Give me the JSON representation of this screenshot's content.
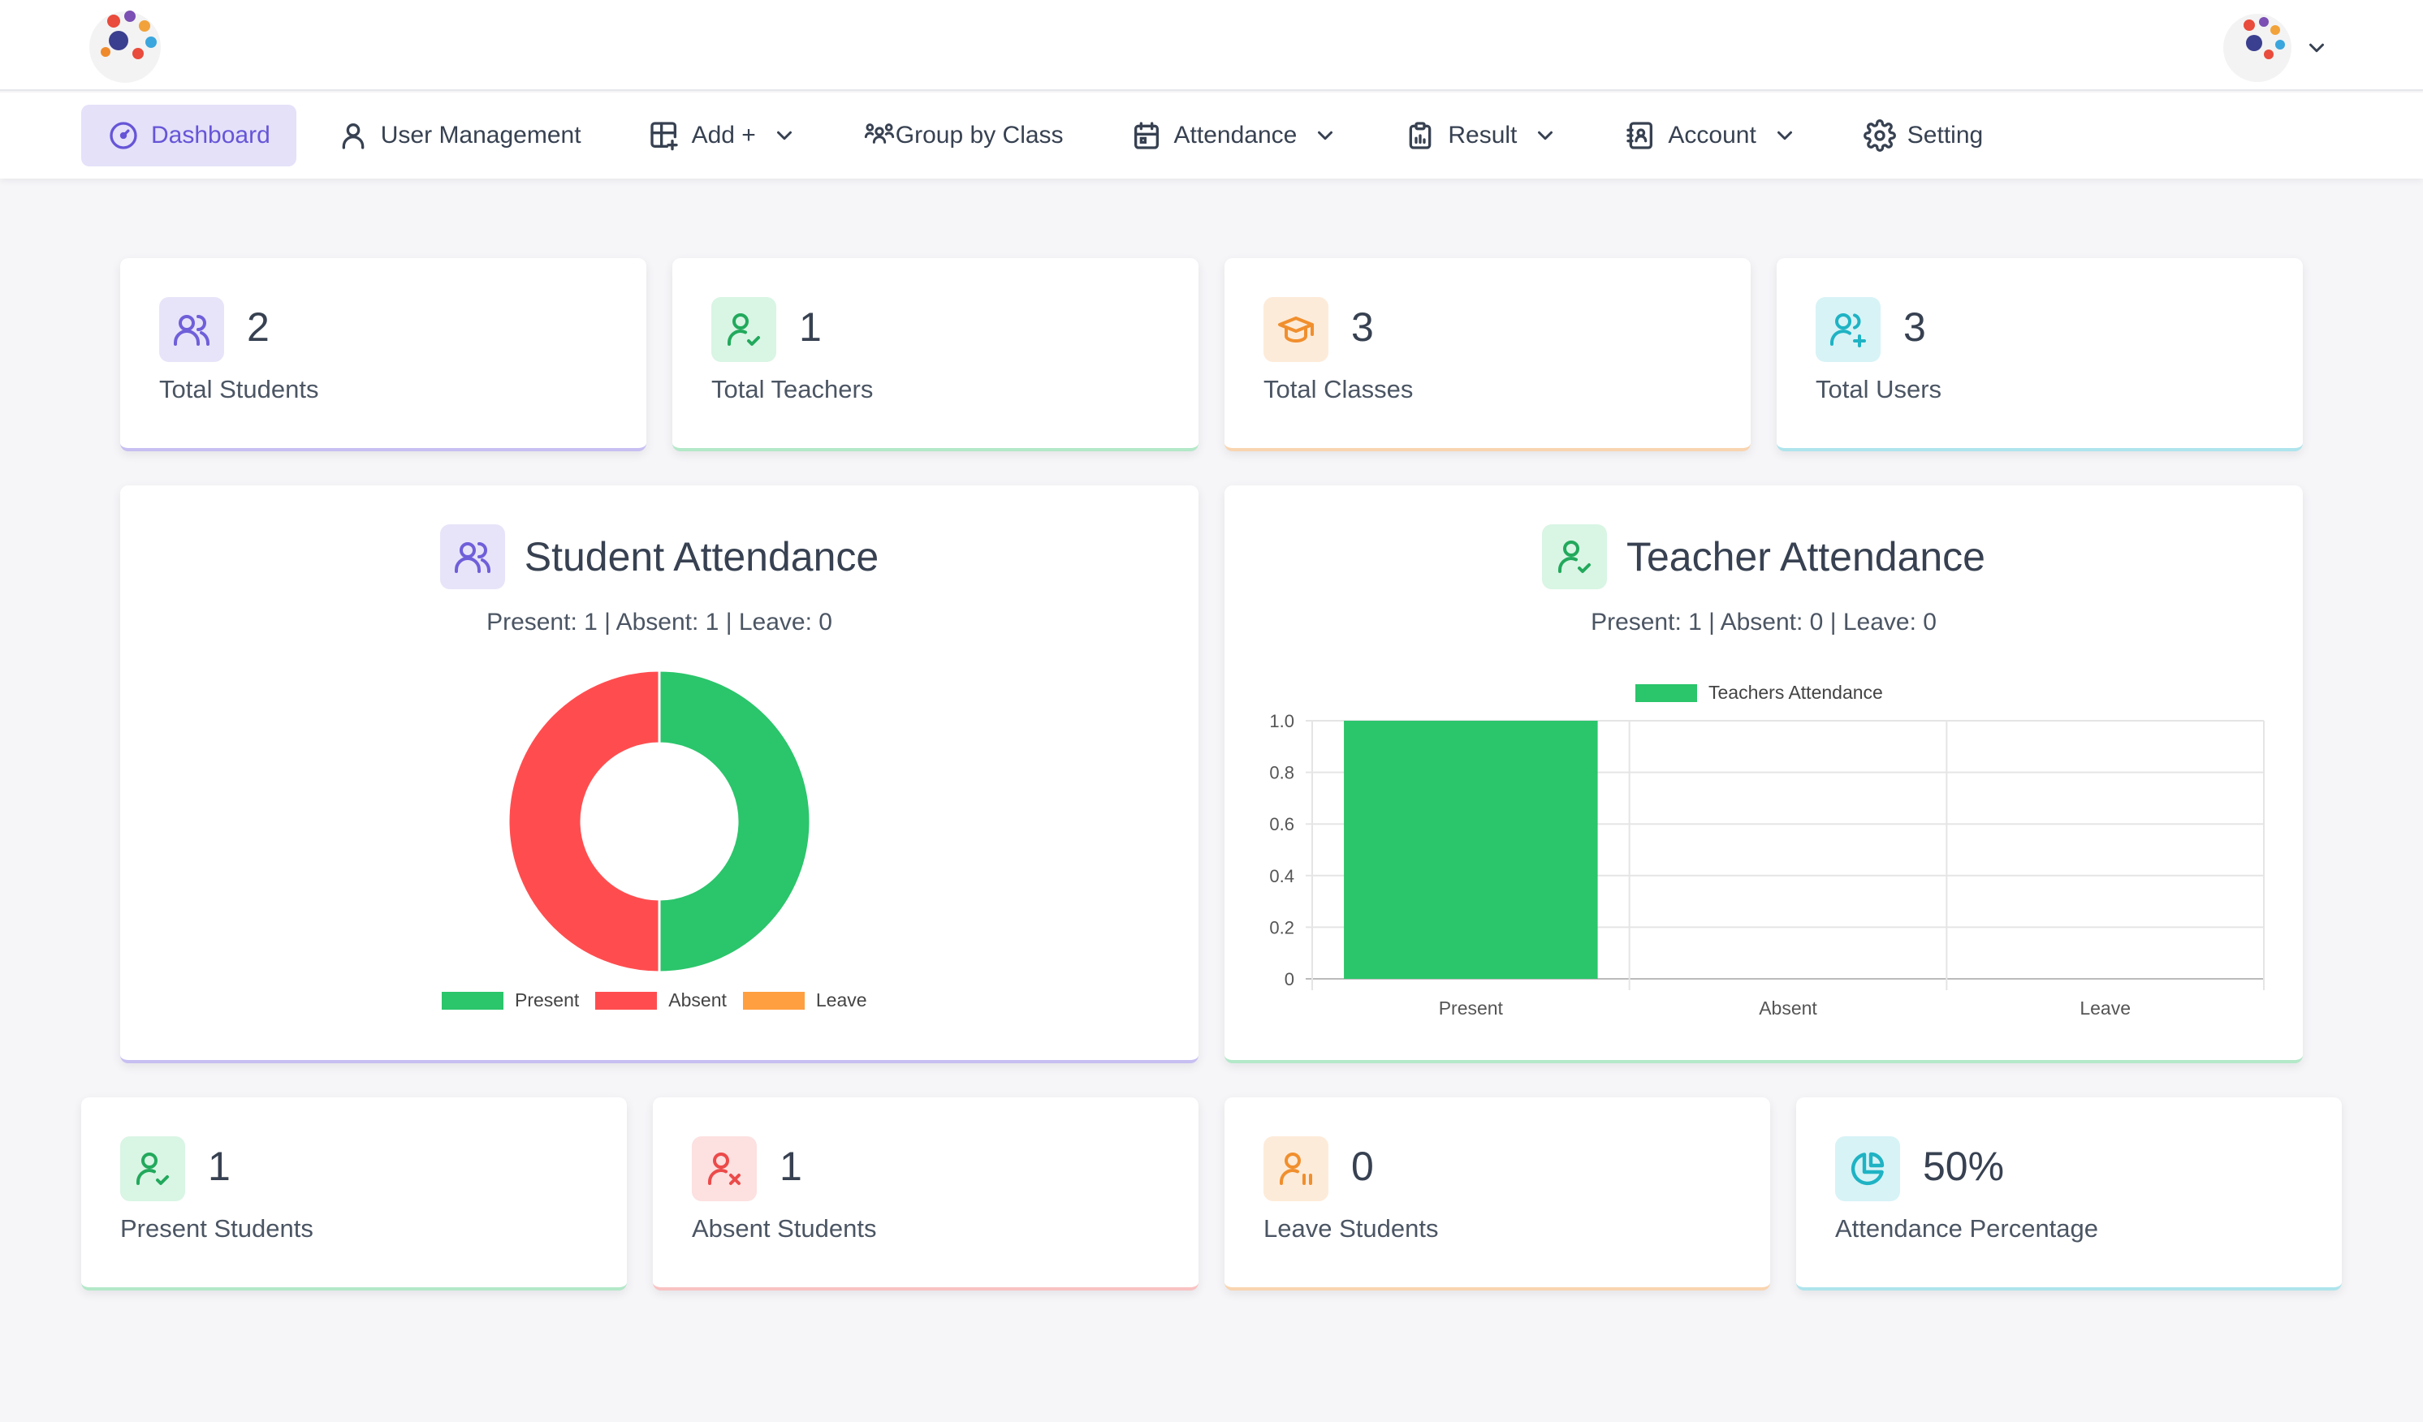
{
  "nav": {
    "items": [
      {
        "label": "Dashboard",
        "active": true
      },
      {
        "label": "User Management"
      },
      {
        "label": "Add +",
        "dropdown": true
      },
      {
        "label": "Group by Class"
      },
      {
        "label": "Attendance",
        "dropdown": true
      },
      {
        "label": "Result",
        "dropdown": true
      },
      {
        "label": "Account",
        "dropdown": true
      },
      {
        "label": "Setting"
      }
    ]
  },
  "stats_top": [
    {
      "value": "2",
      "label": "Total Students",
      "icon": "users-icon",
      "color": "#6f5fd9",
      "bg": "#e7e4f9"
    },
    {
      "value": "1",
      "label": "Total Teachers",
      "icon": "user-check-icon",
      "color": "#22a95c",
      "bg": "#d9f5e4"
    },
    {
      "value": "3",
      "label": "Total Classes",
      "icon": "graduation-cap-icon",
      "color": "#f08f2e",
      "bg": "#fdebd9"
    },
    {
      "value": "3",
      "label": "Total Users",
      "icon": "user-plus-icon",
      "color": "#1fb3c4",
      "bg": "#d7f3f6"
    }
  ],
  "student_attendance": {
    "title": "Student Attendance",
    "summary": "Present: 1 | Absent: 1 | Leave: 0"
  },
  "teacher_attendance": {
    "title": "Teacher Attendance",
    "summary": "Present: 1 | Absent: 0 | Leave: 0"
  },
  "stats_bottom": [
    {
      "value": "1",
      "label": "Present Students",
      "icon": "user-check-icon",
      "color": "#22a95c",
      "bg": "#d9f5e4"
    },
    {
      "value": "1",
      "label": "Absent Students",
      "icon": "user-x-icon",
      "color": "#ec4a4a",
      "bg": "#fde0e0"
    },
    {
      "value": "0",
      "label": "Leave Students",
      "icon": "user-pause-icon",
      "color": "#f08f2e",
      "bg": "#fdebd9"
    },
    {
      "value": "50%",
      "label": "Attendance Percentage",
      "icon": "pie-chart-icon",
      "color": "#1fb3c4",
      "bg": "#d7f3f6"
    }
  ],
  "colors": {
    "present": "#2bc56b",
    "absent": "#ff4d4f",
    "leave": "#ff9f40"
  },
  "chart_data": [
    {
      "type": "pie",
      "style": "doughnut",
      "categories": [
        "Present",
        "Absent",
        "Leave"
      ],
      "values": [
        1,
        1,
        0
      ],
      "colors": [
        "#2bc56b",
        "#ff4d4f",
        "#ff9f40"
      ],
      "legend": "bottom"
    },
    {
      "type": "bar",
      "categories": [
        "Present",
        "Absent",
        "Leave"
      ],
      "series": [
        {
          "name": "Teachers Attendance",
          "values": [
            1,
            0,
            0
          ]
        }
      ],
      "yticks": [
        "1.0",
        "0.8",
        "0.6",
        "0.4",
        "0.2",
        "0"
      ],
      "ylim": [
        0,
        1
      ],
      "grid": true,
      "legend": "top"
    }
  ]
}
